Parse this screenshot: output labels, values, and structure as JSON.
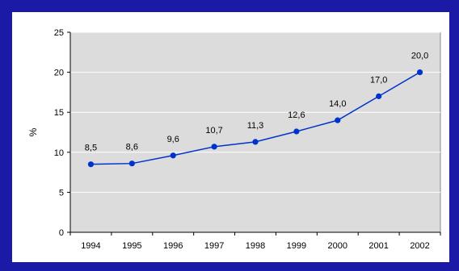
{
  "chart_data": {
    "type": "line",
    "title": "",
    "xlabel": "",
    "ylabel": "%",
    "categories": [
      "1994",
      "1995",
      "1996",
      "1997",
      "1998",
      "1999",
      "2000",
      "2001",
      "2002"
    ],
    "series": [
      {
        "values": [
          8.5,
          8.6,
          9.6,
          10.7,
          11.3,
          12.6,
          14.0,
          17.0,
          20.0
        ],
        "labels": [
          "8,5",
          "8,6",
          "9,6",
          "10,7",
          "11,3",
          "12,6",
          "14,0",
          "17,0",
          "20,0"
        ],
        "color": "#0033cc"
      }
    ],
    "ylim": [
      0,
      25
    ],
    "yticks": [
      0,
      5,
      10,
      15,
      20,
      25
    ],
    "grid": true,
    "legend": "none",
    "plot_background": "#dcdcdc",
    "frame_background": "#1a1aa6"
  }
}
